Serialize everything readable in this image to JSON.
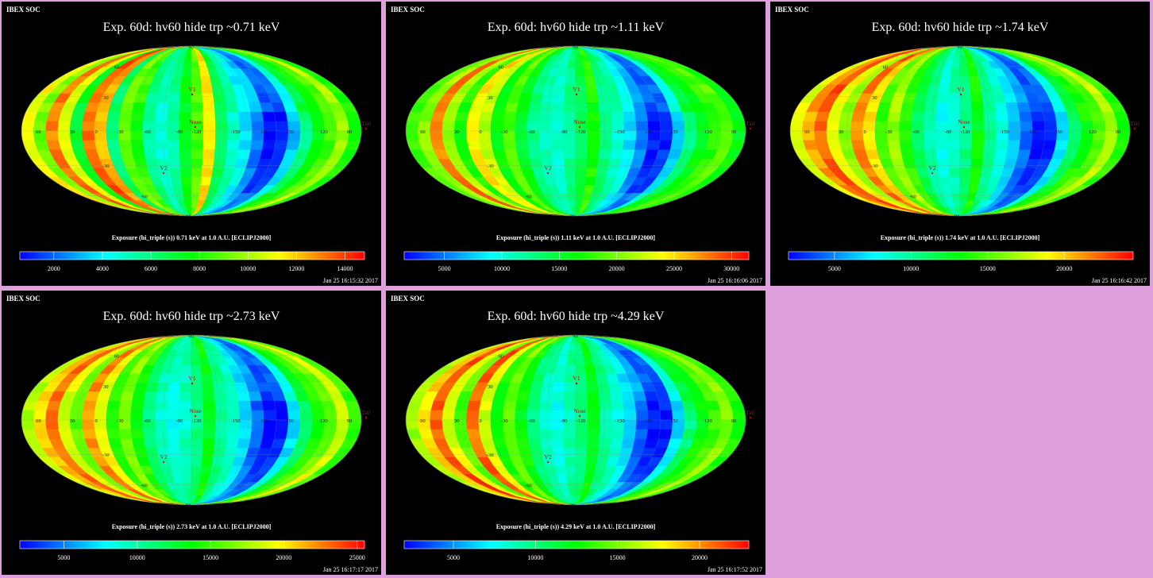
{
  "page": {
    "background": "#dda0dd",
    "panel_background": "#000000"
  },
  "panels": [
    {
      "header": "IBEX SOC",
      "title": "Exp.   60d: hv60 hide trp ~0.71 keV",
      "colorbar_label": "Exposure (hi_triple (s))  0.71 keV at 1.0 A.U. [ECLIPJ2000]",
      "timestamp": "Jan 25 16:15:32 2017"
    },
    {
      "header": "IBEX SOC",
      "title": "Exp.   60d: hv60 hide trp ~1.11 keV",
      "colorbar_label": "Exposure (hi_triple (s))  1.11 keV at 1.0 A.U. [ECLIPJ2000]",
      "timestamp": "Jan 25 16:16:06 2017"
    },
    {
      "header": "IBEX SOC",
      "title": "Exp.   60d: hv60 hide trp ~1.74 keV",
      "colorbar_label": "Exposure (hi_triple (s))  1.74 keV at 1.0 A.U. [ECLIPJ2000]",
      "timestamp": "Jan 25 16:16:42 2017"
    },
    {
      "header": "IBEX SOC",
      "title": "Exp.   60d: hv60 hide trp ~2.73 keV",
      "colorbar_label": "Exposure (hi_triple (s))  2.73 keV at 1.0 A.U. [ECLIPJ2000]",
      "timestamp": "Jan 25 16:17:17 2017"
    },
    {
      "header": "IBEX SOC",
      "title": "Exp.   60d: hv60 hide trp ~4.29 keV",
      "colorbar_label": "Exposure (hi_triple (s))  4.29 keV at 1.0 A.U. [ECLIPJ2000]",
      "timestamp": "Jan 25 16:17:52 2017"
    }
  ],
  "map_labels": {
    "markers": [
      "V1",
      "V2",
      "Nose",
      "Tail"
    ],
    "lon_labels": [
      "60",
      "30",
      "0",
      "-30",
      "-60",
      "-90",
      "-120",
      "-150",
      "180",
      "150",
      "120",
      "90"
    ],
    "lat_labels": [
      "60",
      "30",
      "-30",
      "-60",
      "90",
      "-90"
    ]
  },
  "chart_data": [
    {
      "type": "heatmap",
      "projection": "mollweide",
      "energy_keV": 0.71,
      "colorbar": {
        "ticks": [
          2000,
          4000,
          6000,
          8000,
          10000,
          12000,
          14000
        ],
        "range": [
          600,
          14800
        ]
      },
      "colormap": [
        "#0000ff",
        "#00ffff",
        "#00ff00",
        "#ffff00",
        "#ff0000"
      ],
      "level_profile": [
        0.72,
        0.6,
        0.86,
        0.7,
        0.45,
        0.88,
        0.8,
        0.38,
        0.58,
        0.52,
        0.34,
        0.28,
        0.33,
        0.46,
        0.55,
        0.74,
        0.4,
        0.3,
        0.22,
        0.16,
        0.06,
        0.07,
        0.24,
        0.42,
        0.48,
        0.55,
        0.64,
        0.5
      ]
    },
    {
      "type": "heatmap",
      "projection": "mollweide",
      "energy_keV": 1.11,
      "colorbar": {
        "ticks": [
          5000,
          10000,
          15000,
          20000,
          25000,
          30000
        ],
        "range": [
          1500,
          31500
        ]
      },
      "colormap": [
        "#0000ff",
        "#00ffff",
        "#00ff00",
        "#ffff00",
        "#ff0000"
      ],
      "level_profile": [
        0.55,
        0.62,
        0.85,
        0.65,
        0.5,
        0.74,
        0.68,
        0.48,
        0.56,
        0.46,
        0.36,
        0.3,
        0.28,
        0.34,
        0.4,
        0.5,
        0.36,
        0.3,
        0.22,
        0.16,
        0.07,
        0.08,
        0.25,
        0.42,
        0.46,
        0.52,
        0.56,
        0.48
      ]
    },
    {
      "type": "heatmap",
      "projection": "mollweide",
      "energy_keV": 1.74,
      "colorbar": {
        "ticks": [
          5000,
          10000,
          15000,
          20000
        ],
        "range": [
          2000,
          24500
        ]
      },
      "colormap": [
        "#0000ff",
        "#00ffff",
        "#00ff00",
        "#ffff00",
        "#ff0000"
      ],
      "level_profile": [
        0.7,
        0.82,
        0.9,
        0.72,
        0.62,
        0.86,
        0.76,
        0.55,
        0.64,
        0.52,
        0.4,
        0.32,
        0.26,
        0.3,
        0.36,
        0.48,
        0.34,
        0.28,
        0.2,
        0.14,
        0.06,
        0.07,
        0.26,
        0.44,
        0.5,
        0.56,
        0.66,
        0.52
      ]
    },
    {
      "type": "heatmap",
      "projection": "mollweide",
      "energy_keV": 2.73,
      "colorbar": {
        "ticks": [
          5000,
          10000,
          15000,
          20000,
          25000
        ],
        "range": [
          2000,
          25500
        ]
      },
      "colormap": [
        "#0000ff",
        "#00ffff",
        "#00ff00",
        "#ffff00",
        "#ff0000"
      ],
      "level_profile": [
        0.66,
        0.78,
        0.88,
        0.7,
        0.58,
        0.84,
        0.72,
        0.52,
        0.6,
        0.5,
        0.38,
        0.3,
        0.26,
        0.3,
        0.36,
        0.46,
        0.34,
        0.28,
        0.2,
        0.14,
        0.06,
        0.07,
        0.26,
        0.44,
        0.52,
        0.58,
        0.7,
        0.54
      ]
    },
    {
      "type": "heatmap",
      "projection": "mollweide",
      "energy_keV": 4.29,
      "colorbar": {
        "ticks": [
          5000,
          10000,
          15000,
          20000
        ],
        "range": [
          2000,
          23000
        ]
      },
      "colormap": [
        "#0000ff",
        "#00ffff",
        "#00ff00",
        "#ffff00",
        "#ff0000"
      ],
      "level_profile": [
        0.64,
        0.76,
        0.9,
        0.7,
        0.56,
        0.88,
        0.7,
        0.5,
        0.58,
        0.48,
        0.36,
        0.3,
        0.26,
        0.32,
        0.36,
        0.46,
        0.34,
        0.28,
        0.2,
        0.14,
        0.06,
        0.07,
        0.26,
        0.42,
        0.48,
        0.54,
        0.62,
        0.5
      ]
    }
  ]
}
